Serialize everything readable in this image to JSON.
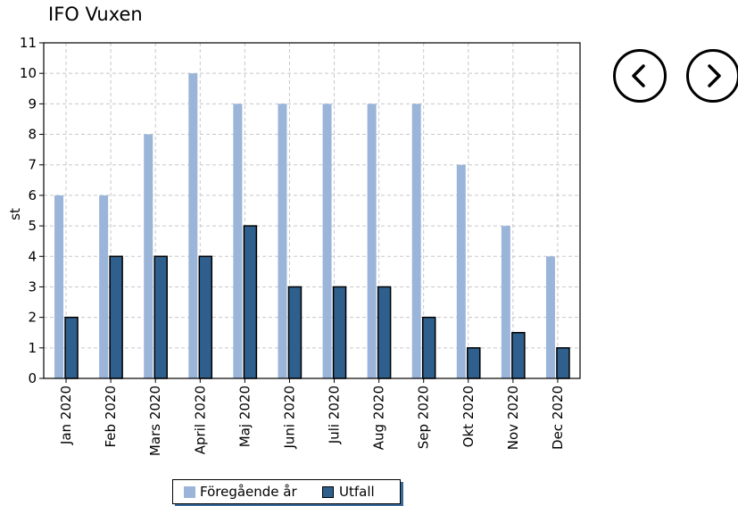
{
  "title": "IFO Vuxen",
  "nav": {
    "prev_icon": "chevron-left-icon",
    "next_icon": "chevron-right-icon"
  },
  "legend": {
    "items": [
      "Föregående år",
      "Utfall"
    ]
  },
  "colors": {
    "prev_year": "#9ab5d9",
    "outcome": "#2f5f8c",
    "grid": "#c8c8c8"
  },
  "chart_data": {
    "type": "bar",
    "title": "",
    "xlabel": "",
    "ylabel": "st",
    "ylim": [
      0,
      11
    ],
    "yticks": [
      0,
      1,
      2,
      3,
      4,
      5,
      6,
      7,
      8,
      9,
      10,
      11
    ],
    "grid": true,
    "legend_position": "bottom",
    "categories": [
      "Jan 2020",
      "Feb 2020",
      "Mars 2020",
      "April 2020",
      "Maj 2020",
      "Juni 2020",
      "Juli 2020",
      "Aug 2020",
      "Sep 2020",
      "Okt 2020",
      "Nov 2020",
      "Dec 2020"
    ],
    "series": [
      {
        "name": "Föregående år",
        "values": [
          6,
          6,
          8,
          10,
          9,
          9,
          9,
          9,
          9,
          7,
          5,
          4
        ]
      },
      {
        "name": "Utfall",
        "values": [
          2,
          4,
          4,
          4,
          5,
          3,
          3,
          3,
          2,
          1,
          1.5,
          1
        ]
      }
    ]
  }
}
